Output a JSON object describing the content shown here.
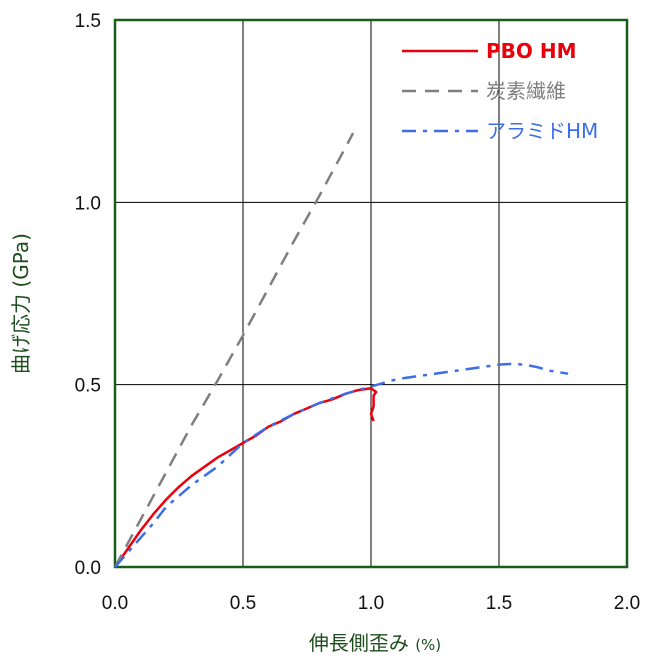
{
  "chart_data": {
    "type": "line",
    "title": "",
    "xlabel": "伸長側歪み",
    "xlabel_unit": "(%)",
    "ylabel": "曲げ応力 (GPa)",
    "xlim": [
      0,
      2.0
    ],
    "ylim": [
      0,
      1.5
    ],
    "xticks": [
      "0.0",
      "0.5",
      "1.0",
      "1.5",
      "2.0"
    ],
    "yticks": [
      "0.0",
      "0.5",
      "1.0",
      "1.5"
    ],
    "grid": true,
    "legend_position": "top-right",
    "frame_color": "#1a5c1a",
    "series": [
      {
        "name": "PBO HM",
        "color": "#e8000b",
        "dash": "solid",
        "bold": true,
        "points": [
          [
            0,
            0
          ],
          [
            0.05,
            0.05
          ],
          [
            0.1,
            0.1
          ],
          [
            0.15,
            0.145
          ],
          [
            0.2,
            0.185
          ],
          [
            0.25,
            0.22
          ],
          [
            0.3,
            0.25
          ],
          [
            0.35,
            0.275
          ],
          [
            0.4,
            0.3
          ],
          [
            0.45,
            0.32
          ],
          [
            0.5,
            0.34
          ],
          [
            0.55,
            0.36
          ],
          [
            0.6,
            0.385
          ],
          [
            0.65,
            0.4
          ],
          [
            0.7,
            0.42
          ],
          [
            0.75,
            0.435
          ],
          [
            0.8,
            0.45
          ],
          [
            0.85,
            0.46
          ],
          [
            0.9,
            0.475
          ],
          [
            0.95,
            0.485
          ],
          [
            1.0,
            0.49
          ],
          [
            1.01,
            0.485
          ],
          [
            1.02,
            0.48
          ],
          [
            1.01,
            0.47
          ],
          [
            1.01,
            0.44
          ],
          [
            1.0,
            0.42
          ],
          [
            1.01,
            0.4
          ]
        ]
      },
      {
        "name": "炭素繊維",
        "color": "#7f7f7f",
        "dash": "dashed",
        "bold": false,
        "points": [
          [
            0,
            0
          ],
          [
            0.1,
            0.13
          ],
          [
            0.2,
            0.26
          ],
          [
            0.3,
            0.39
          ],
          [
            0.4,
            0.51
          ],
          [
            0.5,
            0.635
          ],
          [
            0.6,
            0.765
          ],
          [
            0.7,
            0.895
          ],
          [
            0.8,
            1.02
          ],
          [
            0.9,
            1.15
          ],
          [
            0.93,
            1.19
          ]
        ]
      },
      {
        "name": "アラミドHM",
        "color": "#3b6ee8",
        "dash": "dashdot",
        "bold": false,
        "points": [
          [
            0,
            0
          ],
          [
            0.05,
            0.04
          ],
          [
            0.1,
            0.08
          ],
          [
            0.15,
            0.12
          ],
          [
            0.2,
            0.165
          ],
          [
            0.3,
            0.225
          ],
          [
            0.4,
            0.275
          ],
          [
            0.5,
            0.34
          ],
          [
            0.6,
            0.385
          ],
          [
            0.7,
            0.42
          ],
          [
            0.8,
            0.45
          ],
          [
            0.9,
            0.475
          ],
          [
            1.0,
            0.495
          ],
          [
            1.1,
            0.515
          ],
          [
            1.2,
            0.525
          ],
          [
            1.3,
            0.535
          ],
          [
            1.4,
            0.545
          ],
          [
            1.5,
            0.555
          ],
          [
            1.55,
            0.557
          ],
          [
            1.6,
            0.555
          ],
          [
            1.65,
            0.548
          ],
          [
            1.7,
            0.538
          ],
          [
            1.77,
            0.53
          ]
        ]
      }
    ]
  }
}
